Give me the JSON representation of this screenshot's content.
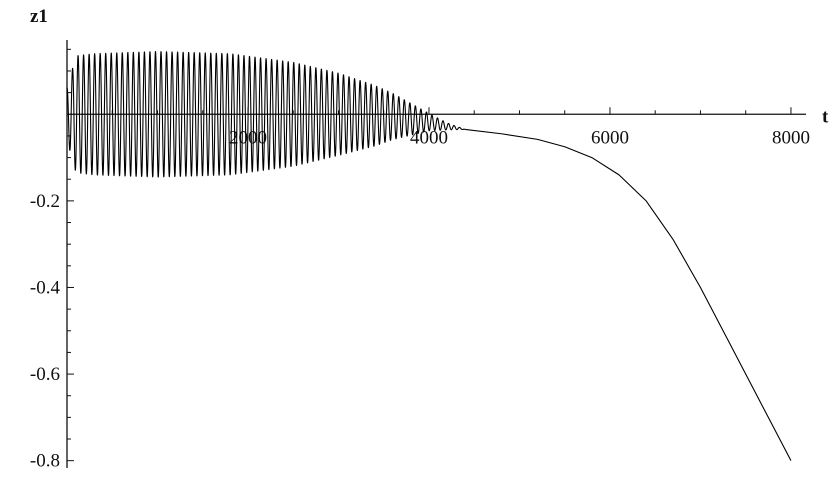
{
  "chart_data": {
    "type": "line",
    "title": "",
    "xlabel": "t",
    "ylabel": "z1",
    "xlim": [
      0,
      8100
    ],
    "ylim": [
      -0.81,
      0.16
    ],
    "x_ticks": [
      2000,
      4000,
      6000,
      8000
    ],
    "x_tick_labels": [
      "2000",
      "4000",
      "6000",
      "8000"
    ],
    "y_ticks": [
      -0.2,
      -0.4,
      -0.6,
      -0.8
    ],
    "y_tick_labels": [
      "-0.2",
      "-0.4",
      "-0.6",
      "-0.8"
    ],
    "grid": false,
    "legend": "none",
    "series": [
      {
        "style": "oscillation",
        "t_start": 0,
        "t_end": 4400,
        "cycles": 72,
        "envelope_t": [
          0,
          100,
          300,
          1000,
          1800,
          2500,
          3000,
          3400,
          3700,
          4000,
          4200,
          4400
        ],
        "envelope_amplitude": [
          0.06,
          0.135,
          0.14,
          0.145,
          0.14,
          0.12,
          0.095,
          0.07,
          0.045,
          0.02,
          0.008,
          0.0
        ],
        "center_t": [
          0,
          3000,
          3600,
          4000,
          4200,
          4400
        ],
        "center_z": [
          0.0,
          0.0,
          -0.005,
          -0.018,
          -0.028,
          -0.035
        ]
      },
      {
        "style": "smooth",
        "t": [
          4400,
          4800,
          5200,
          5500,
          5800,
          6100,
          6400,
          6700,
          7000,
          7300,
          7600,
          7800,
          8000
        ],
        "z": [
          -0.035,
          -0.045,
          -0.058,
          -0.075,
          -0.1,
          -0.14,
          -0.2,
          -0.29,
          -0.4,
          -0.52,
          -0.64,
          -0.72,
          -0.8
        ]
      }
    ]
  }
}
